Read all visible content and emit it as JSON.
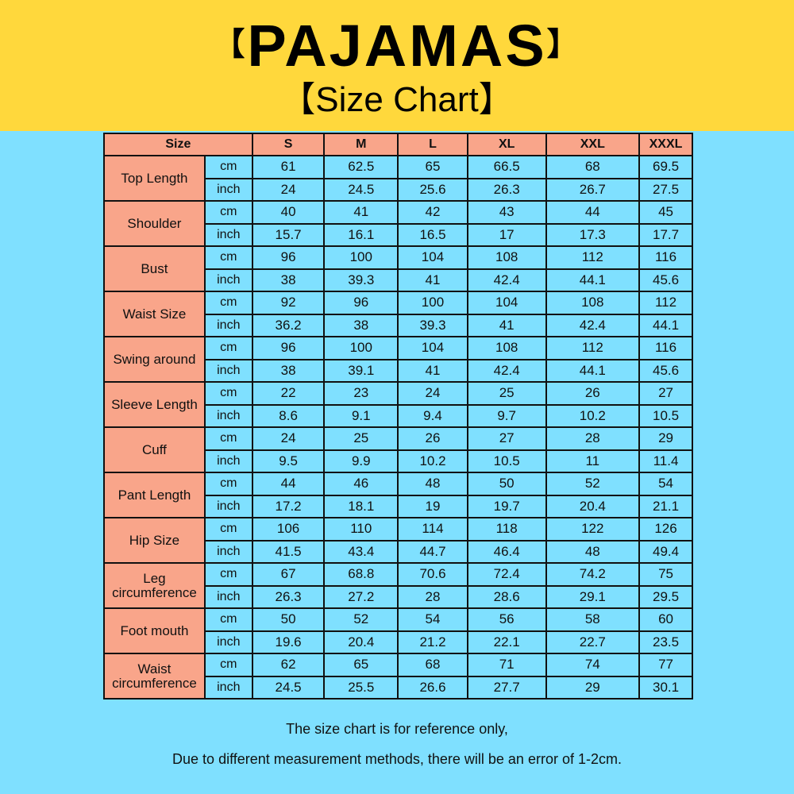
{
  "header": {
    "title": "PAJAMAS",
    "title_bracket_left": "【",
    "title_bracket_right": "】",
    "subtitle": "【Size Chart】"
  },
  "colors": {
    "banner": "#ffd83c",
    "background": "#7fe0ff",
    "label_cells": "#f9a58a"
  },
  "table": {
    "size_header": "Size",
    "sizes": [
      "S",
      "M",
      "L",
      "XL",
      "XXL",
      "XXXL"
    ],
    "rows": [
      {
        "label": "Top Length",
        "cm_unit": "cm",
        "inch_unit": "inch",
        "cm": [
          "61",
          "62.5",
          "65",
          "66.5",
          "68",
          "69.5"
        ],
        "inch": [
          "24",
          "24.5",
          "25.6",
          "26.3",
          "26.7",
          "27.5"
        ]
      },
      {
        "label": "Shoulder",
        "cm_unit": "cm",
        "inch_unit": "inch",
        "cm": [
          "40",
          "41",
          "42",
          "43",
          "44",
          "45"
        ],
        "inch": [
          "15.7",
          "16.1",
          "16.5",
          "17",
          "17.3",
          "17.7"
        ]
      },
      {
        "label": "Bust",
        "cm_unit": "cm",
        "inch_unit": "inch",
        "cm": [
          "96",
          "100",
          "104",
          "108",
          "112",
          "116"
        ],
        "inch": [
          "38",
          "39.3",
          "41",
          "42.4",
          "44.1",
          "45.6"
        ]
      },
      {
        "label": "Waist Size",
        "cm_unit": "cm",
        "inch_unit": "inch",
        "cm": [
          "92",
          "96",
          "100",
          "104",
          "108",
          "112"
        ],
        "inch": [
          "36.2",
          "38",
          "39.3",
          "41",
          "42.4",
          "44.1"
        ]
      },
      {
        "label": "Swing around",
        "cm_unit": "cm",
        "inch_unit": "inch",
        "cm": [
          "96",
          "100",
          "104",
          "108",
          "112",
          "116"
        ],
        "inch": [
          "38",
          "39.1",
          "41",
          "42.4",
          "44.1",
          "45.6"
        ]
      },
      {
        "label": "Sleeve Length",
        "cm_unit": "cm",
        "inch_unit": "inch",
        "cm": [
          "22",
          "23",
          "24",
          "25",
          "26",
          "27"
        ],
        "inch": [
          "8.6",
          "9.1",
          "9.4",
          "9.7",
          "10.2",
          "10.5"
        ]
      },
      {
        "label": "Cuff",
        "cm_unit": "cm",
        "inch_unit": "inch",
        "cm": [
          "24",
          "25",
          "26",
          "27",
          "28",
          "29"
        ],
        "inch": [
          "9.5",
          "9.9",
          "10.2",
          "10.5",
          "11",
          "11.4"
        ]
      },
      {
        "label": "Pant Length",
        "cm_unit": "cm",
        "inch_unit": "inch",
        "cm": [
          "44",
          "46",
          "48",
          "50",
          "52",
          "54"
        ],
        "inch": [
          "17.2",
          "18.1",
          "19",
          "19.7",
          "20.4",
          "21.1"
        ]
      },
      {
        "label": "Hip Size",
        "cm_unit": "cm",
        "inch_unit": "inch",
        "cm": [
          "106",
          "110",
          "114",
          "118",
          "122",
          "126"
        ],
        "inch": [
          "41.5",
          "43.4",
          "44.7",
          "46.4",
          "48",
          "49.4"
        ]
      },
      {
        "label": "Leg circumference",
        "cm_unit": "cm",
        "inch_unit": "inch",
        "cm": [
          "67",
          "68.8",
          "70.6",
          "72.4",
          "74.2",
          "75"
        ],
        "inch": [
          "26.3",
          "27.2",
          "28",
          "28.6",
          "29.1",
          "29.5"
        ]
      },
      {
        "label": "Foot mouth",
        "cm_unit": "cm",
        "inch_unit": "inch",
        "cm": [
          "50",
          "52",
          "54",
          "56",
          "58",
          "60"
        ],
        "inch": [
          "19.6",
          "20.4",
          "21.2",
          "22.1",
          "22.7",
          "23.5"
        ]
      },
      {
        "label": "Waist circumference",
        "cm_unit": "cm",
        "inch_unit": "inch",
        "cm": [
          "62",
          "65",
          "68",
          "71",
          "74",
          "77"
        ],
        "inch": [
          "24.5",
          "25.5",
          "26.6",
          "27.7",
          "29",
          "30.1"
        ]
      }
    ]
  },
  "notes": {
    "line1": "The size chart is for reference only,",
    "line2": "Due to different measurement methods, there will be an error of 1-2cm."
  }
}
